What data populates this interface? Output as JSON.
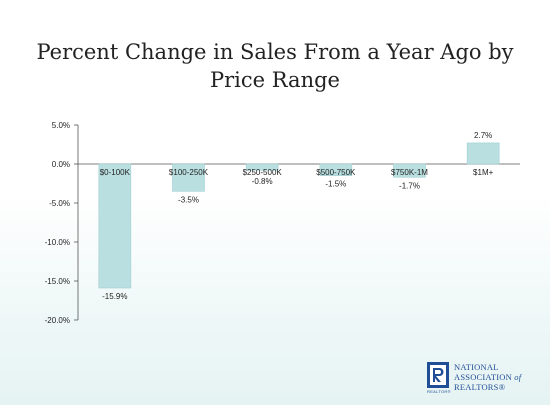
{
  "title": "Percent Change in Sales From a Year Ago by Price Range",
  "chart_data": {
    "type": "bar",
    "title": "",
    "xlabel": "",
    "ylabel": "",
    "categories": [
      "$0-100K",
      "$100-250K",
      "$250-500K",
      "$500-750K",
      "$750K-1M",
      "$1M+"
    ],
    "values": [
      -15.9,
      -3.5,
      -0.8,
      -1.5,
      -1.7,
      2.7
    ],
    "data_labels": [
      "-15.9%",
      "-3.5%",
      "-0.8%",
      "-1.5%",
      "-1.7%",
      "2.7%"
    ],
    "yticks": [
      "5.0%",
      "0.0%",
      "-5.0%",
      "-10.0%",
      "-15.0%",
      "-20.0%"
    ],
    "ytick_values": [
      5,
      0,
      -5,
      -10,
      -15,
      -20
    ],
    "ylim": [
      -20,
      5
    ],
    "grid": false,
    "bar_color": "#b9dfe0",
    "bar_edge_color": "#9fcfd1"
  },
  "logo": {
    "line1": "NATIONAL",
    "line2": "ASSOCIATION",
    "of": "of",
    "line3": "REALTORS",
    "reg": "®",
    "mark_sub": "REALTOR®",
    "color": "#1f4e96"
  }
}
